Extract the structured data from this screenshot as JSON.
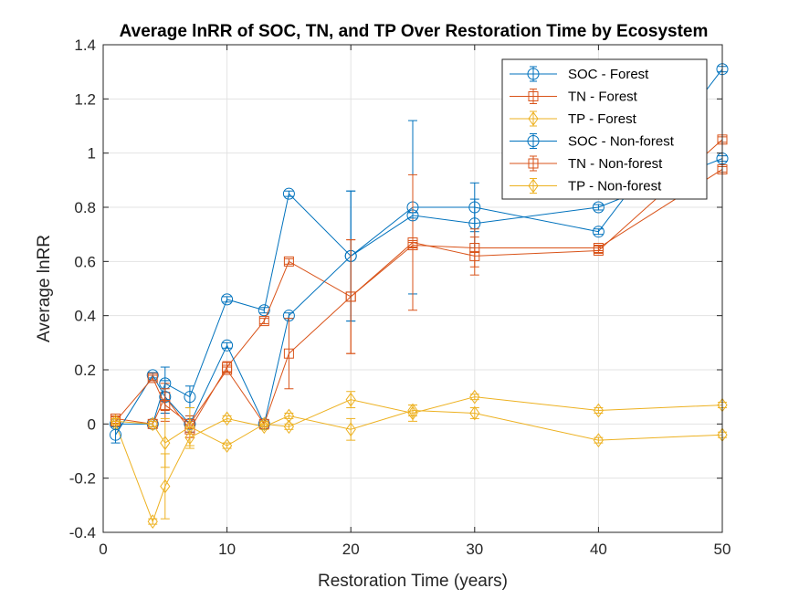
{
  "chart_data": {
    "type": "line",
    "title": "Average lnRR of SOC, TN, and TP Over Restoration Time by Ecosystem",
    "xlabel": "Restoration Time (years)",
    "ylabel": "Average lnRR",
    "xlim": [
      0,
      50
    ],
    "ylim": [
      -0.4,
      1.4
    ],
    "xticks": [
      0,
      10,
      20,
      30,
      40,
      50
    ],
    "yticks": [
      -0.4,
      -0.2,
      0,
      0.2,
      0.4,
      0.6,
      0.8,
      1,
      1.2,
      1.4
    ],
    "xtick_labels": [
      "0",
      "10",
      "20",
      "30",
      "40",
      "50"
    ],
    "ytick_labels": [
      "-0.4",
      "-0.2",
      "0",
      "0.2",
      "0.4",
      "0.6",
      "0.8",
      "1",
      "1.2",
      "1.4"
    ],
    "grid": true,
    "legend_position": "top-right",
    "colors": {
      "soc": "#0072BD",
      "tn": "#D95319",
      "tp": "#EDB120"
    },
    "series": [
      {
        "name": "SOC - Forest",
        "color": "#0072BD",
        "marker": "circle",
        "x": [
          1,
          4,
          5,
          7,
          10,
          13,
          15,
          20,
          25,
          30,
          40,
          50
        ],
        "y": [
          0.0,
          0.0,
          0.15,
          0.1,
          0.46,
          0.42,
          0.85,
          0.62,
          0.8,
          0.8,
          0.71,
          1.31
        ],
        "err": [
          0.01,
          0.01,
          0.06,
          0.04,
          0.01,
          0.01,
          0.01,
          0.24,
          0.32,
          0.09,
          0.01,
          0.01
        ]
      },
      {
        "name": "TN - Forest",
        "color": "#D95319",
        "marker": "square",
        "x": [
          1,
          4,
          5,
          7,
          10,
          13,
          15,
          20,
          25,
          30,
          40,
          50
        ],
        "y": [
          0.02,
          0.0,
          0.1,
          -0.02,
          0.21,
          0.38,
          0.6,
          0.47,
          0.67,
          0.62,
          0.64,
          1.05
        ],
        "err": [
          0.01,
          0.01,
          0.05,
          0.03,
          0.02,
          0.01,
          0.01,
          0.21,
          0.25,
          0.07,
          0.01,
          0.01
        ]
      },
      {
        "name": "TP - Forest",
        "color": "#EDB120",
        "marker": "diamond",
        "x": [
          1,
          4,
          5,
          7,
          10,
          13,
          15,
          20,
          25,
          30,
          40,
          50
        ],
        "y": [
          0.0,
          -0.36,
          -0.23,
          -0.05,
          0.02,
          -0.01,
          0.03,
          -0.02,
          0.05,
          0.04,
          -0.06,
          -0.04
        ],
        "err": [
          0.01,
          0.01,
          0.12,
          0.04,
          0.01,
          0.01,
          0.01,
          0.04,
          0.02,
          0.02,
          0.01,
          0.01
        ]
      },
      {
        "name": "SOC - Non-forest",
        "color": "#0072BD",
        "marker": "circle",
        "x": [
          1,
          4,
          5,
          7,
          10,
          13,
          15,
          20,
          25,
          30,
          40,
          50
        ],
        "y": [
          -0.04,
          0.18,
          0.1,
          0.0,
          0.29,
          0.0,
          0.4,
          0.62,
          0.77,
          0.74,
          0.8,
          0.98
        ],
        "err": [
          0.03,
          0.01,
          0.06,
          0.03,
          0.01,
          0.01,
          0.01,
          0.24,
          0.01,
          0.09,
          0.01,
          0.01
        ]
      },
      {
        "name": "TN - Non-forest",
        "color": "#D95319",
        "marker": "square",
        "x": [
          1,
          4,
          5,
          7,
          10,
          13,
          15,
          20,
          25,
          30,
          40,
          50
        ],
        "y": [
          0.01,
          0.17,
          0.07,
          0.0,
          0.2,
          0.0,
          0.26,
          0.47,
          0.66,
          0.65,
          0.65,
          0.94
        ],
        "err": [
          0.01,
          0.01,
          0.06,
          0.03,
          0.01,
          0.01,
          0.13,
          0.21,
          0.01,
          0.07,
          0.01,
          0.01
        ]
      },
      {
        "name": "TP - Non-forest",
        "color": "#EDB120",
        "marker": "diamond",
        "x": [
          1,
          4,
          5,
          7,
          10,
          13,
          15,
          20,
          25,
          30,
          40,
          50
        ],
        "y": [
          0.01,
          0.0,
          -0.07,
          -0.01,
          -0.08,
          0.0,
          -0.01,
          0.09,
          0.04,
          0.1,
          0.05,
          0.07
        ],
        "err": [
          0.01,
          0.01,
          0.09,
          0.07,
          0.01,
          0.01,
          0.01,
          0.03,
          0.03,
          0.01,
          0.01,
          0.01
        ]
      }
    ]
  }
}
